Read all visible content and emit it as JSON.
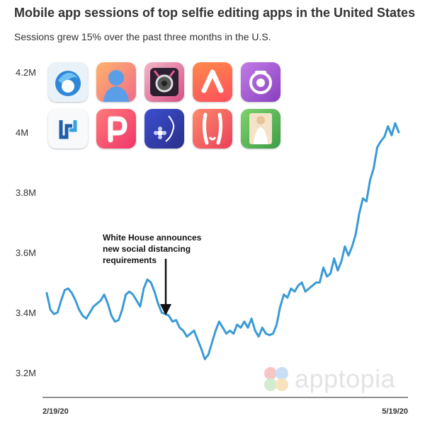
{
  "title": "Mobile app sessions of top selfie editing apps in the United States",
  "subtitle": "Sessions grew 15% over the past three months in the U.S.",
  "annotation": {
    "lines": [
      "White House announces",
      "new social distancing",
      "requirements"
    ],
    "points_to_x": "3/16/20"
  },
  "brand": {
    "name": "apptopia"
  },
  "icons": [
    {
      "name": "facetune-icon",
      "bg": "#e9f2f8"
    },
    {
      "name": "face-silhouette-icon",
      "bg": "#f6a07d"
    },
    {
      "name": "beauty-camera-icon",
      "bg": "#2c2030"
    },
    {
      "name": "a-letter-icon",
      "bg": "#ff6b4a"
    },
    {
      "name": "purple-camera-icon",
      "bg": "#a85bd0"
    },
    {
      "name": "p-bracket-icon",
      "bg": "#f7f9fb"
    },
    {
      "name": "p-letter-icon",
      "bg": "#f5536b"
    },
    {
      "name": "flower-face-icon",
      "bg": "#3c4bc0"
    },
    {
      "name": "body-shape-icon",
      "bg": "#f0604a"
    },
    {
      "name": "body-editor-icon",
      "bg": "#5cb850"
    }
  ],
  "colors": {
    "line": "#3a9ad6",
    "text": "#333333"
  },
  "chart_data": {
    "type": "line",
    "title": "Mobile app sessions of top selfie editing apps in the United States",
    "subtitle": "Sessions grew 15% over the past three months in the U.S.",
    "x_start": "2/19/20",
    "x_end": "5/19/20",
    "x_tick_labels": [
      "2/19/20",
      "5/19/20"
    ],
    "y_tick_labels": [
      "3.2M",
      "3.4M",
      "3.6M",
      "3.8M",
      "4M",
      "4.2M"
    ],
    "y_ticks": [
      3.2,
      3.4,
      3.6,
      3.8,
      4.0,
      4.2
    ],
    "ylim": [
      3.2,
      4.2
    ],
    "grid": false,
    "series": [
      {
        "values": [
          3.465,
          3.41,
          3.395,
          3.4,
          3.44,
          3.475,
          3.48,
          3.465,
          3.44,
          3.41,
          3.39,
          3.38,
          3.4,
          3.42,
          3.43,
          3.44,
          3.46,
          3.43,
          3.39,
          3.37,
          3.375,
          3.41,
          3.46,
          3.47,
          3.46,
          3.44,
          3.42,
          3.48,
          3.51,
          3.5,
          3.47,
          3.43,
          3.4,
          3.395,
          3.39,
          3.37,
          3.375,
          3.35,
          3.34,
          3.32,
          3.33,
          3.34,
          3.31,
          3.28,
          3.245,
          3.26,
          3.3,
          3.34,
          3.37,
          3.35,
          3.33,
          3.34,
          3.33,
          3.36,
          3.35,
          3.37,
          3.35,
          3.38,
          3.34,
          3.32,
          3.35,
          3.33,
          3.325,
          3.33,
          3.36,
          3.42,
          3.46,
          3.45,
          3.48,
          3.47,
          3.49,
          3.5,
          3.47,
          3.48,
          3.49,
          3.5,
          3.5,
          3.55,
          3.52,
          3.53,
          3.58,
          3.54,
          3.57,
          3.62,
          3.59,
          3.62,
          3.66,
          3.73,
          3.78,
          3.77,
          3.84,
          3.88,
          3.95,
          3.97,
          3.985,
          4.02,
          3.99,
          4.03,
          4.0
        ]
      }
    ]
  }
}
